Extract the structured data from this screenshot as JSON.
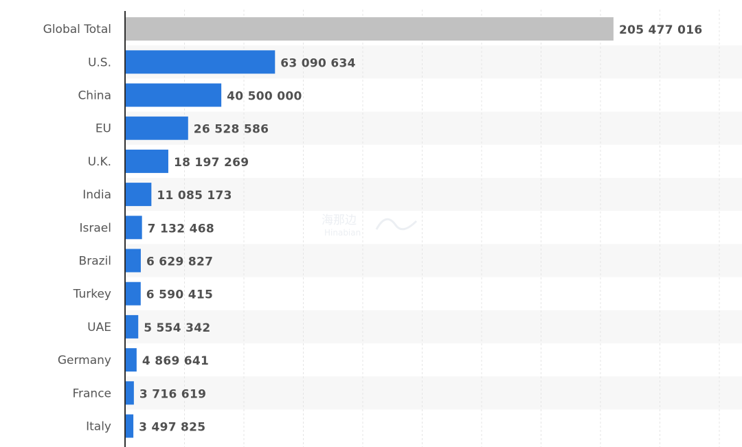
{
  "colors": {
    "primary_bar": "#2878DD",
    "total_bar": "#C1C1C1",
    "band": "#F7F7F7",
    "grid": "#E4E4E4",
    "axis": "#2F2F2F"
  },
  "watermark": {
    "text": "海那边",
    "subtext": "Hinabian"
  },
  "chart_data": {
    "type": "bar",
    "orientation": "horizontal",
    "title": "",
    "xlabel": "",
    "ylabel": "",
    "categories": [
      "Global Total",
      "U.S.",
      "China",
      "EU",
      "U.K.",
      "India",
      "Israel",
      "Brazil",
      "Turkey",
      "UAE",
      "Germany",
      "France",
      "Italy"
    ],
    "values": [
      205477016,
      63090634,
      40500000,
      26528586,
      18197269,
      11085173,
      7132468,
      6629827,
      6590415,
      5554342,
      4869641,
      3716619,
      3497825
    ],
    "value_labels": [
      "205 477 016",
      "63 090 634",
      "40 500 000",
      "26 528 586",
      "18 197 269",
      "11 085 173",
      "7 132 468",
      "6 629 827",
      "6 590 415",
      "5 554 342",
      "4 869 641",
      "3 716 619",
      "3 497 825"
    ],
    "highlighted_category": "Global Total",
    "xlim": [
      0,
      250000000
    ],
    "grid": true,
    "legend": "none"
  }
}
